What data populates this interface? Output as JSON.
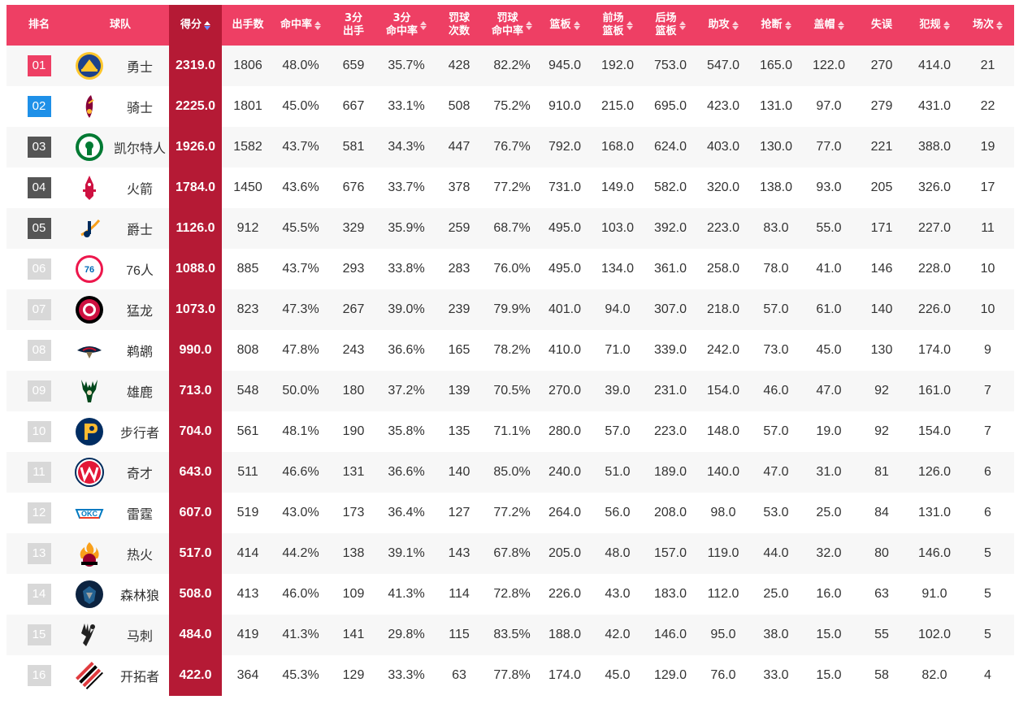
{
  "columns": [
    {
      "label": "排名",
      "sortable": false
    },
    {
      "label": "球队",
      "sortable": false
    },
    {
      "label": "得分",
      "sortable": true,
      "active": true
    },
    {
      "label": "出手数",
      "sortable": false
    },
    {
      "label": "命中率",
      "sortable": true
    },
    {
      "label": "3分\n出手",
      "sortable": false
    },
    {
      "label": "3分\n命中率",
      "sortable": true
    },
    {
      "label": "罚球\n次数",
      "sortable": false
    },
    {
      "label": "罚球\n命中率",
      "sortable": true
    },
    {
      "label": "篮板",
      "sortable": true
    },
    {
      "label": "前场\n篮板",
      "sortable": true
    },
    {
      "label": "后场\n篮板",
      "sortable": true
    },
    {
      "label": "助攻",
      "sortable": true
    },
    {
      "label": "抢断",
      "sortable": true
    },
    {
      "label": "盖帽",
      "sortable": true
    },
    {
      "label": "失误",
      "sortable": false
    },
    {
      "label": "犯规",
      "sortable": true
    },
    {
      "label": "场次",
      "sortable": true
    }
  ],
  "colors": {
    "header": "#ee3f64",
    "highlight": "#b51a35",
    "rank1": "#ee3f64",
    "rank2": "#1e90e8",
    "rank_top": "#555555",
    "rank_other": "#d8d8d8"
  },
  "rows": [
    {
      "rank": "01",
      "team": "勇士",
      "logo": "warriors-logo",
      "logo_color": "#1d428a",
      "pts": "2319.0",
      "fga": "1806",
      "fgp": "48.0%",
      "tpa": "659",
      "tpp": "35.7%",
      "fta": "428",
      "ftp": "82.2%",
      "reb": "945.0",
      "oreb": "192.0",
      "dreb": "753.0",
      "ast": "547.0",
      "stl": "165.0",
      "blk": "122.0",
      "tov": "270",
      "pf": "414.0",
      "gp": "21"
    },
    {
      "rank": "02",
      "team": "骑士",
      "logo": "cavaliers-logo",
      "logo_color": "#860038",
      "pts": "2225.0",
      "fga": "1801",
      "fgp": "45.0%",
      "tpa": "667",
      "tpp": "33.1%",
      "fta": "508",
      "ftp": "75.2%",
      "reb": "910.0",
      "oreb": "215.0",
      "dreb": "695.0",
      "ast": "423.0",
      "stl": "131.0",
      "blk": "97.0",
      "tov": "279",
      "pf": "431.0",
      "gp": "22"
    },
    {
      "rank": "03",
      "team": "凯尔特人",
      "logo": "celtics-logo",
      "logo_color": "#007a33",
      "pts": "1926.0",
      "fga": "1582",
      "fgp": "43.7%",
      "tpa": "581",
      "tpp": "34.3%",
      "fta": "447",
      "ftp": "76.7%",
      "reb": "792.0",
      "oreb": "168.0",
      "dreb": "624.0",
      "ast": "403.0",
      "stl": "130.0",
      "blk": "77.0",
      "tov": "221",
      "pf": "388.0",
      "gp": "19"
    },
    {
      "rank": "04",
      "team": "火箭",
      "logo": "rockets-logo",
      "logo_color": "#ce1141",
      "pts": "1784.0",
      "fga": "1450",
      "fgp": "43.6%",
      "tpa": "676",
      "tpp": "33.7%",
      "fta": "378",
      "ftp": "77.2%",
      "reb": "731.0",
      "oreb": "149.0",
      "dreb": "582.0",
      "ast": "320.0",
      "stl": "138.0",
      "blk": "93.0",
      "tov": "205",
      "pf": "326.0",
      "gp": "17"
    },
    {
      "rank": "05",
      "team": "爵士",
      "logo": "jazz-logo",
      "logo_color": "#002b5c",
      "pts": "1126.0",
      "fga": "912",
      "fgp": "45.5%",
      "tpa": "329",
      "tpp": "35.9%",
      "fta": "259",
      "ftp": "68.7%",
      "reb": "495.0",
      "oreb": "103.0",
      "dreb": "392.0",
      "ast": "223.0",
      "stl": "83.0",
      "blk": "55.0",
      "tov": "171",
      "pf": "227.0",
      "gp": "11"
    },
    {
      "rank": "06",
      "team": "76人",
      "logo": "76ers-logo",
      "logo_color": "#006bb6",
      "pts": "1088.0",
      "fga": "885",
      "fgp": "43.7%",
      "tpa": "293",
      "tpp": "33.8%",
      "fta": "283",
      "ftp": "76.0%",
      "reb": "495.0",
      "oreb": "134.0",
      "dreb": "361.0",
      "ast": "258.0",
      "stl": "78.0",
      "blk": "41.0",
      "tov": "146",
      "pf": "228.0",
      "gp": "10"
    },
    {
      "rank": "07",
      "team": "猛龙",
      "logo": "raptors-logo",
      "logo_color": "#ce1141",
      "pts": "1073.0",
      "fga": "823",
      "fgp": "47.3%",
      "tpa": "267",
      "tpp": "39.0%",
      "fta": "239",
      "ftp": "79.9%",
      "reb": "401.0",
      "oreb": "94.0",
      "dreb": "307.0",
      "ast": "218.0",
      "stl": "57.0",
      "blk": "61.0",
      "tov": "140",
      "pf": "226.0",
      "gp": "10"
    },
    {
      "rank": "08",
      "team": "鹈鹕",
      "logo": "pelicans-logo",
      "logo_color": "#0c2340",
      "pts": "990.0",
      "fga": "808",
      "fgp": "47.8%",
      "tpa": "243",
      "tpp": "36.6%",
      "fta": "165",
      "ftp": "78.2%",
      "reb": "410.0",
      "oreb": "71.0",
      "dreb": "339.0",
      "ast": "242.0",
      "stl": "73.0",
      "blk": "45.0",
      "tov": "130",
      "pf": "174.0",
      "gp": "9"
    },
    {
      "rank": "09",
      "team": "雄鹿",
      "logo": "bucks-logo",
      "logo_color": "#00471b",
      "pts": "713.0",
      "fga": "548",
      "fgp": "50.0%",
      "tpa": "180",
      "tpp": "37.2%",
      "fta": "139",
      "ftp": "70.5%",
      "reb": "270.0",
      "oreb": "39.0",
      "dreb": "231.0",
      "ast": "154.0",
      "stl": "46.0",
      "blk": "47.0",
      "tov": "92",
      "pf": "161.0",
      "gp": "7"
    },
    {
      "rank": "10",
      "team": "步行者",
      "logo": "pacers-logo",
      "logo_color": "#002d62",
      "pts": "704.0",
      "fga": "561",
      "fgp": "48.1%",
      "tpa": "190",
      "tpp": "35.8%",
      "fta": "135",
      "ftp": "71.1%",
      "reb": "280.0",
      "oreb": "57.0",
      "dreb": "223.0",
      "ast": "148.0",
      "stl": "57.0",
      "blk": "19.0",
      "tov": "92",
      "pf": "154.0",
      "gp": "7"
    },
    {
      "rank": "11",
      "team": "奇才",
      "logo": "wizards-logo",
      "logo_color": "#002b5c",
      "pts": "643.0",
      "fga": "511",
      "fgp": "46.6%",
      "tpa": "131",
      "tpp": "36.6%",
      "fta": "140",
      "ftp": "85.0%",
      "reb": "240.0",
      "oreb": "51.0",
      "dreb": "189.0",
      "ast": "140.0",
      "stl": "47.0",
      "blk": "31.0",
      "tov": "81",
      "pf": "126.0",
      "gp": "6"
    },
    {
      "rank": "12",
      "team": "雷霆",
      "logo": "thunder-logo",
      "logo_color": "#007ac1",
      "pts": "607.0",
      "fga": "519",
      "fgp": "43.0%",
      "tpa": "173",
      "tpp": "36.4%",
      "fta": "127",
      "ftp": "77.2%",
      "reb": "264.0",
      "oreb": "56.0",
      "dreb": "208.0",
      "ast": "98.0",
      "stl": "53.0",
      "blk": "25.0",
      "tov": "84",
      "pf": "131.0",
      "gp": "6"
    },
    {
      "rank": "13",
      "team": "热火",
      "logo": "heat-logo",
      "logo_color": "#98002e",
      "pts": "517.0",
      "fga": "414",
      "fgp": "44.2%",
      "tpa": "138",
      "tpp": "39.1%",
      "fta": "143",
      "ftp": "67.8%",
      "reb": "205.0",
      "oreb": "48.0",
      "dreb": "157.0",
      "ast": "119.0",
      "stl": "44.0",
      "blk": "32.0",
      "tov": "80",
      "pf": "146.0",
      "gp": "5"
    },
    {
      "rank": "14",
      "team": "森林狼",
      "logo": "timberwolves-logo",
      "logo_color": "#0c2340",
      "pts": "508.0",
      "fga": "413",
      "fgp": "46.0%",
      "tpa": "109",
      "tpp": "41.3%",
      "fta": "114",
      "ftp": "72.8%",
      "reb": "226.0",
      "oreb": "43.0",
      "dreb": "183.0",
      "ast": "112.0",
      "stl": "25.0",
      "blk": "16.0",
      "tov": "63",
      "pf": "91.0",
      "gp": "5"
    },
    {
      "rank": "15",
      "team": "马刺",
      "logo": "spurs-logo",
      "logo_color": "#222222",
      "pts": "484.0",
      "fga": "419",
      "fgp": "41.3%",
      "tpa": "141",
      "tpp": "29.8%",
      "fta": "115",
      "ftp": "83.5%",
      "reb": "188.0",
      "oreb": "42.0",
      "dreb": "146.0",
      "ast": "95.0",
      "stl": "38.0",
      "blk": "15.0",
      "tov": "55",
      "pf": "102.0",
      "gp": "5"
    },
    {
      "rank": "16",
      "team": "开拓者",
      "logo": "blazers-logo",
      "logo_color": "#e03a3e",
      "pts": "422.0",
      "fga": "364",
      "fgp": "45.3%",
      "tpa": "129",
      "tpp": "33.3%",
      "fta": "63",
      "ftp": "77.8%",
      "reb": "174.0",
      "oreb": "45.0",
      "dreb": "129.0",
      "ast": "76.0",
      "stl": "33.0",
      "blk": "15.0",
      "tov": "58",
      "pf": "82.0",
      "gp": "4"
    }
  ]
}
